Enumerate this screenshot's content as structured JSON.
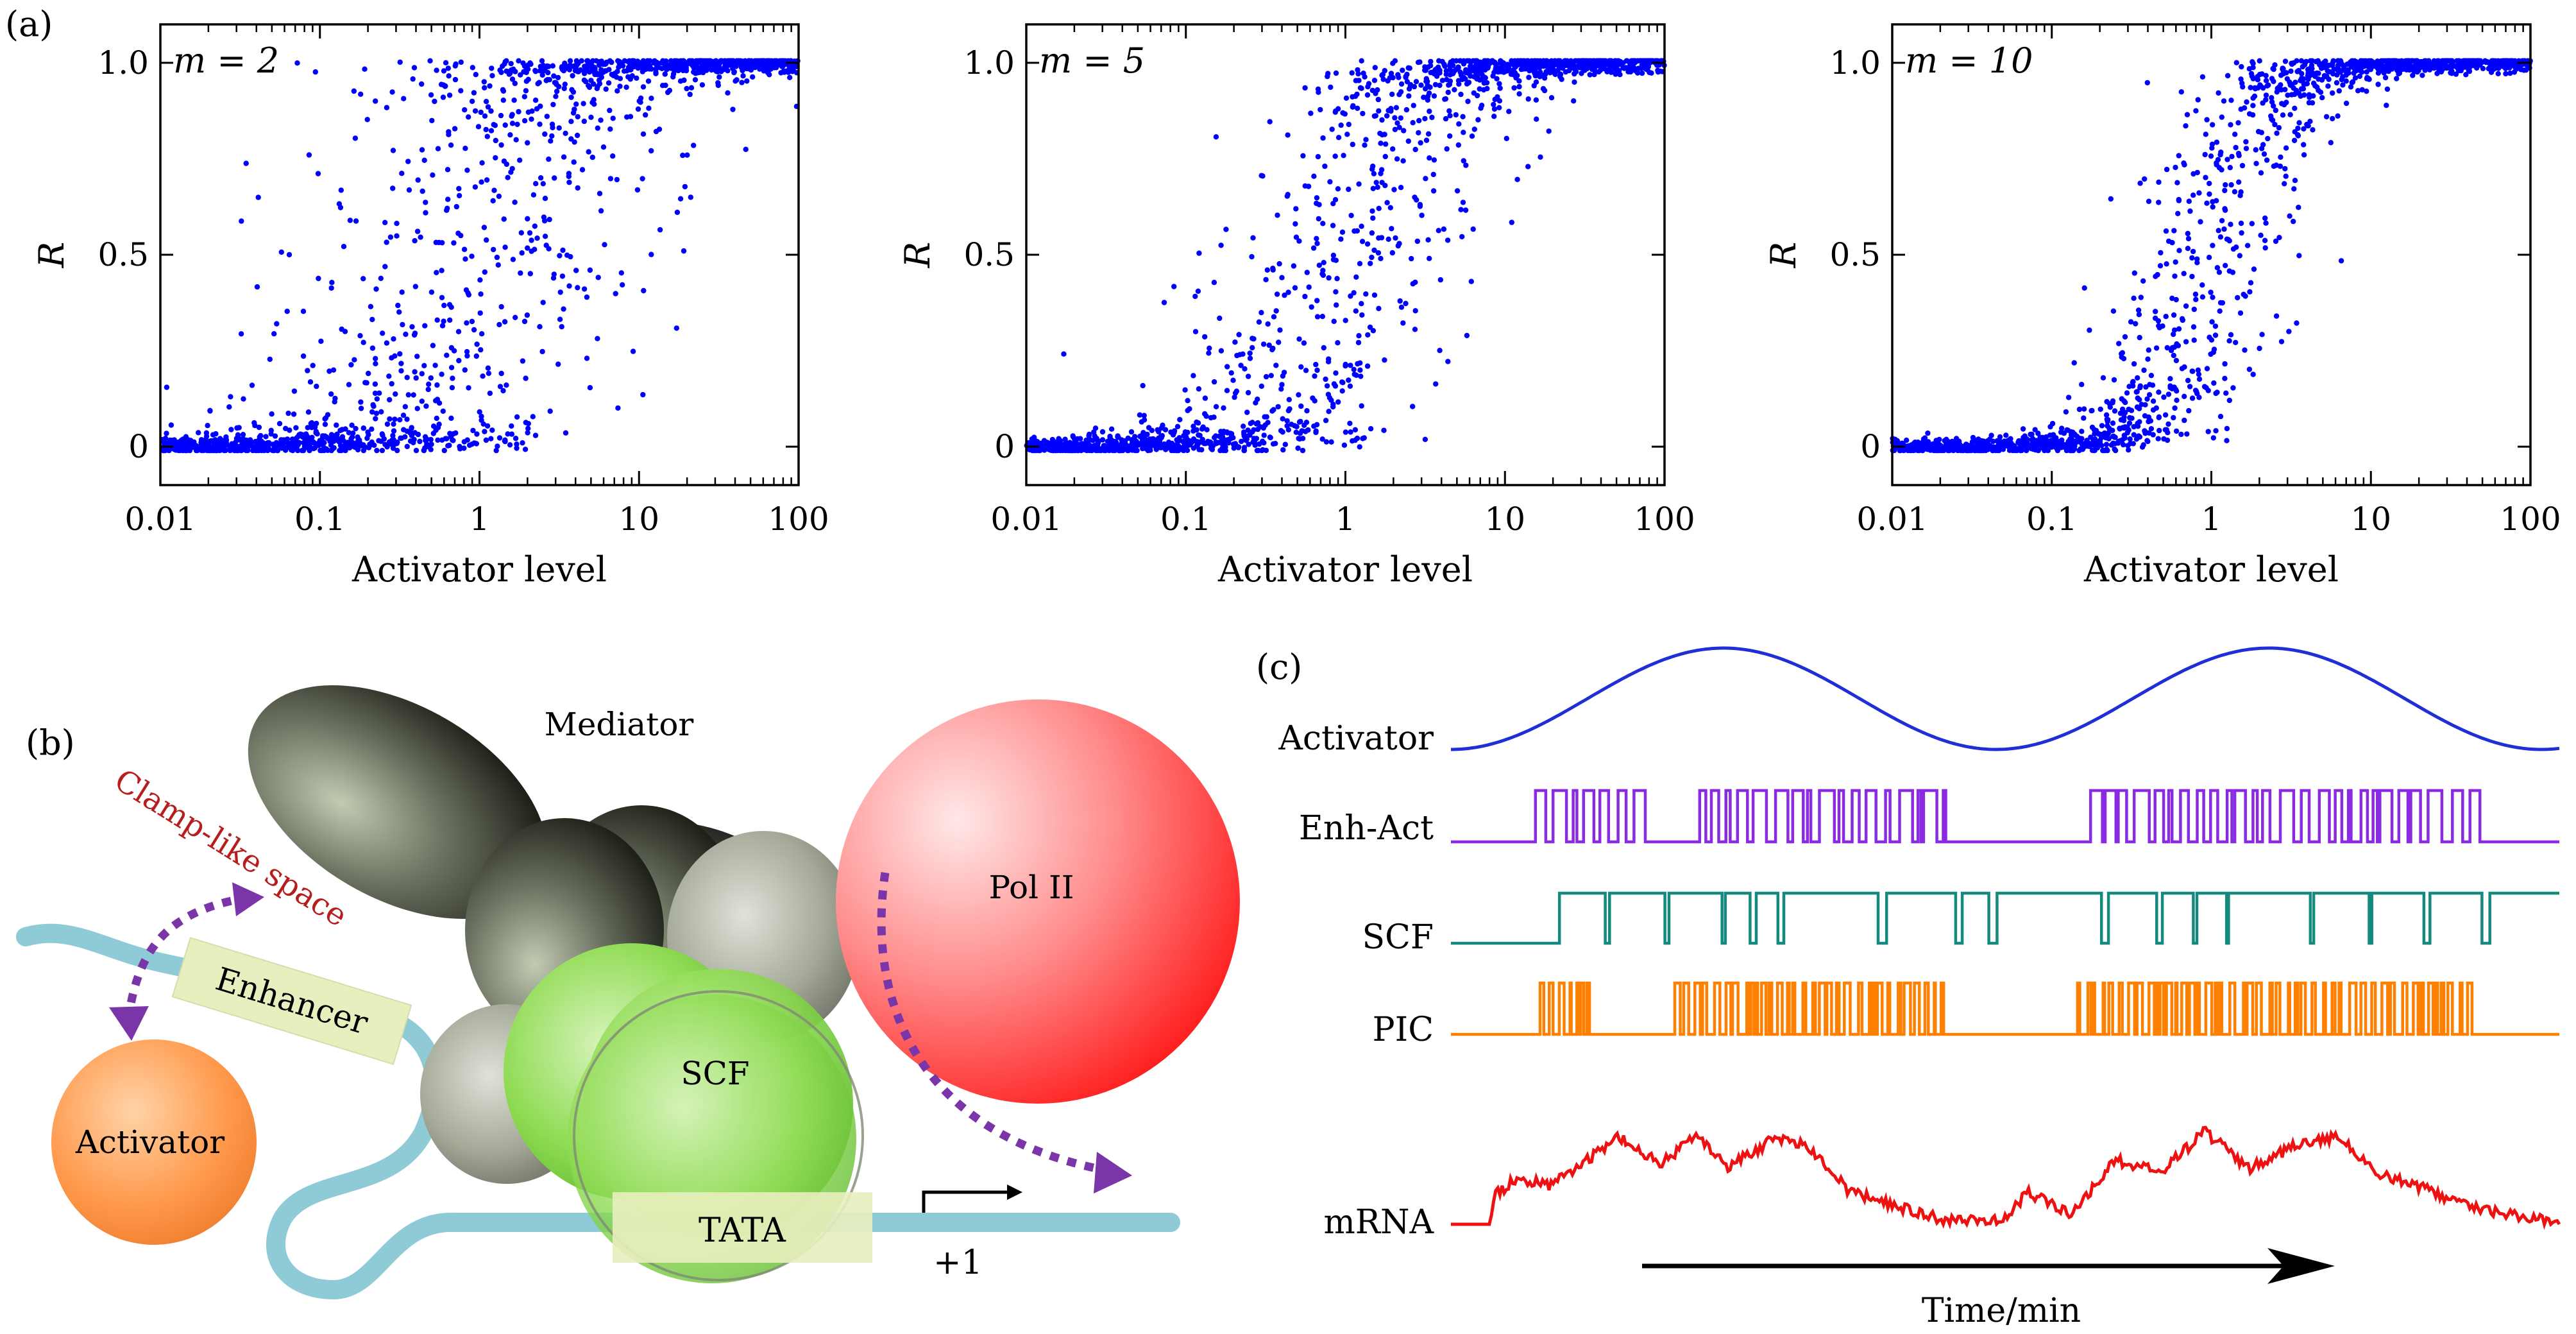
{
  "figure": {
    "panel_labels": [
      "(a)",
      "(b)",
      "(c)"
    ],
    "colors": {
      "scatter": "#0000ff",
      "activator_trace": "#1f2fd6",
      "enh_act_trace": "#8a2be2",
      "scf_trace": "#138a7d",
      "pic_trace": "#ff8000",
      "mrna_trace": "#ee1111",
      "dna": "#8ecbd6",
      "arrow_dashed": "#7a35a8",
      "clamp_text": "#b81d1d"
    }
  },
  "chart_data": [
    {
      "type": "scatter",
      "annotation": "m = 2",
      "xlabel": "Activator level",
      "ylabel": "R",
      "xscale": "log",
      "xlim": [
        0.01,
        100
      ],
      "ylim": [
        -0.1,
        1.1
      ],
      "x_ticks": [
        "0.01",
        "0.1",
        "1",
        "10",
        "100"
      ],
      "y_ticks": [
        "0",
        "0.5",
        "1.0"
      ],
      "hill_m": 2,
      "n_points": 1600,
      "curve": "Hill-like sigmoid, half-max near activator level 1"
    },
    {
      "type": "scatter",
      "annotation": "m = 5",
      "xlabel": "Activator level",
      "ylabel": "R",
      "xscale": "log",
      "xlim": [
        0.01,
        100
      ],
      "ylim": [
        -0.1,
        1.1
      ],
      "x_ticks": [
        "0.01",
        "0.1",
        "1",
        "10",
        "100"
      ],
      "y_ticks": [
        "0",
        "0.5",
        "1.0"
      ],
      "hill_m": 5,
      "n_points": 1600,
      "curve": "Hill-like sigmoid, half-max near activator level 1"
    },
    {
      "type": "scatter",
      "annotation": "m = 10",
      "xlabel": "Activator level",
      "ylabel": "R",
      "xscale": "log",
      "xlim": [
        0.01,
        100
      ],
      "ylim": [
        -0.1,
        1.1
      ],
      "x_ticks": [
        "0.01",
        "0.1",
        "1",
        "10",
        "100"
      ],
      "y_ticks": [
        "0",
        "0.5",
        "1.0"
      ],
      "hill_m": 10,
      "n_points": 1600,
      "curve": "Hill-like sigmoid, half-max near activator level 1"
    },
    {
      "type": "line",
      "xlabel": "Time/min",
      "tracks": [
        "Activator",
        "Enh-Act",
        "SCF",
        "PIC",
        "mRNA"
      ],
      "activator_shape": "sinusoid with two maxima",
      "state_traces": "binary on/off telegraph signals",
      "mrna_shape": "stochastic trajectory"
    }
  ],
  "diagram": {
    "mediator": "Mediator",
    "pol2": "Pol II",
    "clamp": "Clamp-like space",
    "enhancer": "Enhancer",
    "activator": "Activator",
    "scf": "SCF",
    "tata": "TATA",
    "tss": "+1"
  }
}
